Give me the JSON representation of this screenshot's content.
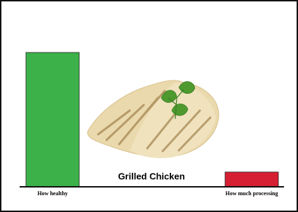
{
  "chart_data": {
    "type": "bar",
    "title": "Grilled Chicken",
    "categories": [
      "How healthy",
      "How much processing"
    ],
    "values": [
      100,
      11
    ],
    "colors": [
      "#3cb14a",
      "#d71f33"
    ],
    "ylim": [
      0,
      100
    ]
  }
}
